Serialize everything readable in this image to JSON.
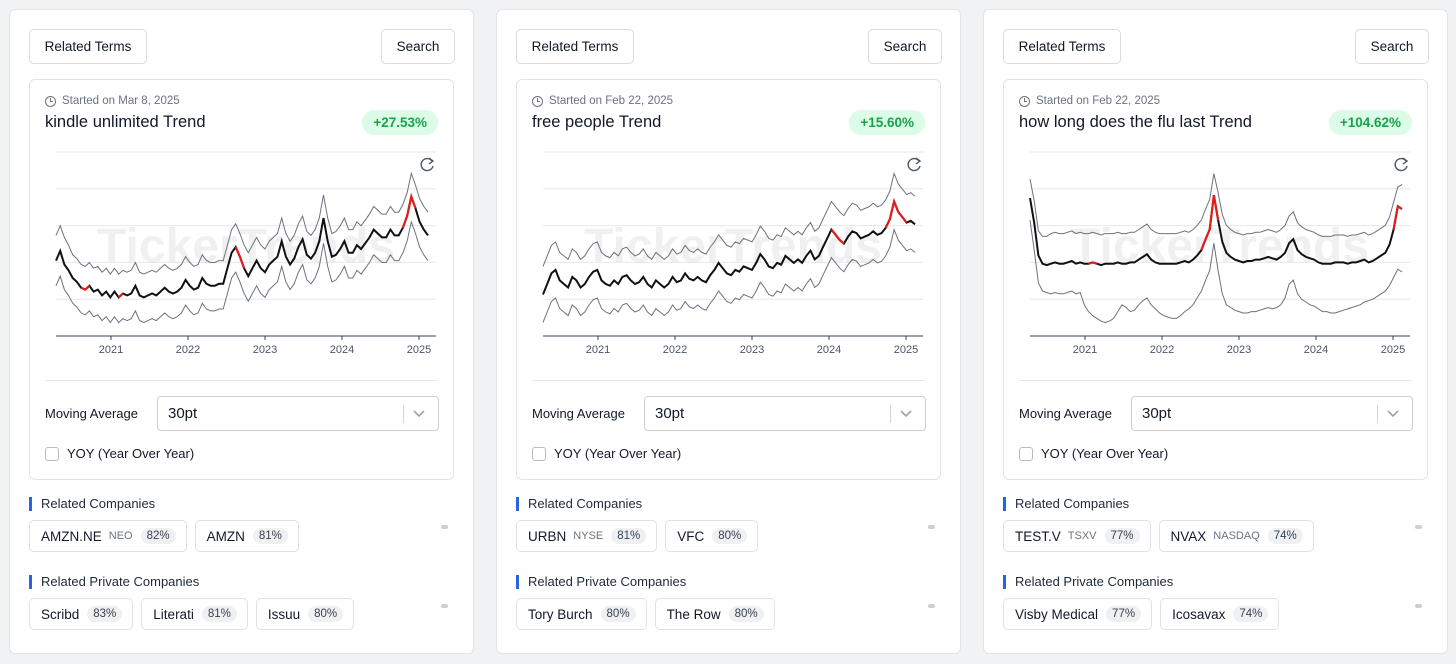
{
  "panels": [
    {
      "related_terms_label": "Related Terms",
      "search_label": "Search",
      "started": "Started on Mar 8, 2025",
      "title": "kindle unlimited Trend",
      "change": "+27.53%",
      "moving_average_label": "Moving Average",
      "moving_average_value": "30pt",
      "yoy_label": "YOY (Year Over Year)",
      "related_companies_label": "Related Companies",
      "related_companies": [
        {
          "name": "AMZN.NE",
          "exchange": "NEO",
          "pct": "82%"
        },
        {
          "name": "AMZN",
          "exchange": "",
          "pct": "81%"
        }
      ],
      "related_private_label": "Related Private Companies",
      "related_private": [
        {
          "name": "Scribd",
          "pct": "83%"
        },
        {
          "name": "Literati",
          "pct": "81%"
        },
        {
          "name": "Issuu",
          "pct": "80%"
        }
      ],
      "chart_data": {
        "type": "line",
        "x_ticks": [
          "2021",
          "2022",
          "2023",
          "2024",
          "2025"
        ],
        "watermark": "TickerTrends",
        "series": [
          {
            "values": [
              62,
              67,
              60,
              57,
              53,
              51,
              48,
              47,
              49,
              46,
              47,
              44,
              46,
              43,
              46,
              43,
              45,
              44,
              45,
              49,
              44,
              43,
              44,
              45,
              44,
              46,
              48,
              46,
              45,
              46,
              48,
              52,
              49,
              47,
              48,
              53,
              50,
              49,
              49,
              50,
              50,
              58,
              66,
              69,
              64,
              58,
              54,
              58,
              62,
              58,
              56,
              60,
              62,
              64,
              72,
              64,
              60,
              63,
              69,
              73,
              65,
              63,
              66,
              72,
              84,
              72,
              64,
              65,
              68,
              72,
              66,
              66,
              70,
              68,
              71,
              74,
              78,
              76,
              74,
              74,
              78,
              75,
              75,
              79,
              85,
              95,
              89,
              82,
              78,
              75
            ]
          },
          {
            "values": [
              75,
              80,
              74,
              70,
              65,
              63,
              60,
              59,
              61,
              58,
              59,
              56,
              58,
              55,
              58,
              55,
              57,
              56,
              57,
              61,
              56,
              55,
              56,
              57,
              56,
              58,
              60,
              58,
              57,
              58,
              60,
              64,
              61,
              59,
              60,
              65,
              62,
              61,
              61,
              62,
              62,
              70,
              78,
              81,
              76,
              70,
              66,
              70,
              74,
              70,
              68,
              72,
              74,
              76,
              84,
              76,
              72,
              75,
              81,
              85,
              77,
              75,
              78,
              84,
              96,
              84,
              76,
              77,
              80,
              84,
              78,
              78,
              82,
              80,
              83,
              86,
              90,
              88,
              86,
              86,
              90,
              87,
              87,
              91,
              97,
              107,
              101,
              94,
              90,
              87
            ]
          },
          {
            "values": [
              49,
              54,
              47,
              44,
              40,
              38,
              35,
              34,
              36,
              33,
              34,
              31,
              33,
              30,
              33,
              30,
              32,
              31,
              32,
              36,
              31,
              30,
              31,
              32,
              31,
              33,
              35,
              33,
              32,
              33,
              35,
              39,
              36,
              34,
              35,
              40,
              37,
              36,
              36,
              37,
              37,
              45,
              53,
              56,
              51,
              45,
              41,
              45,
              49,
              45,
              43,
              47,
              49,
              51,
              59,
              51,
              47,
              50,
              56,
              60,
              52,
              50,
              53,
              59,
              71,
              59,
              51,
              52,
              55,
              59,
              53,
              53,
              57,
              55,
              58,
              61,
              65,
              63,
              61,
              61,
              65,
              62,
              62,
              66,
              72,
              82,
              76,
              69,
              65,
              62
            ]
          }
        ],
        "highlights": [
          [
            6,
            8
          ],
          [
            15,
            16
          ],
          [
            43,
            45
          ],
          [
            83,
            86
          ]
        ]
      }
    },
    {
      "related_terms_label": "Related Terms",
      "search_label": "Search",
      "started": "Started on Feb 22, 2025",
      "title": "free people Trend",
      "change": "+15.60%",
      "moving_average_label": "Moving Average",
      "moving_average_value": "30pt",
      "yoy_label": "YOY (Year Over Year)",
      "related_companies_label": "Related Companies",
      "related_companies": [
        {
          "name": "URBN",
          "exchange": "NYSE",
          "pct": "81%"
        },
        {
          "name": "VFC",
          "exchange": "",
          "pct": "80%"
        }
      ],
      "related_private_label": "Related Private Companies",
      "related_private": [
        {
          "name": "Tory Burch",
          "pct": "80%"
        },
        {
          "name": "The Row",
          "pct": "80%"
        }
      ],
      "chart_data": {
        "type": "line",
        "x_ticks": [
          "2021",
          "2022",
          "2023",
          "2024",
          "2025"
        ],
        "watermark": "TickerTrends",
        "series": [
          {
            "values": [
              42,
              48,
              54,
              56,
              50,
              48,
              46,
              52,
              50,
              46,
              48,
              52,
              55,
              56,
              50,
              48,
              47,
              50,
              48,
              52,
              53,
              50,
              48,
              49,
              52,
              48,
              46,
              50,
              48,
              46,
              48,
              52,
              49,
              50,
              54,
              51,
              50,
              52,
              50,
              49,
              53,
              56,
              60,
              57,
              54,
              53,
              56,
              55,
              58,
              57,
              56,
              60,
              65,
              62,
              58,
              57,
              60,
              59,
              64,
              62,
              60,
              62,
              60,
              64,
              67,
              62,
              64,
              69,
              74,
              79,
              76,
              73,
              71,
              75,
              78,
              77,
              74,
              75,
              76,
              78,
              76,
              77,
              80,
              85,
              95,
              89,
              86,
              83,
              84,
              82
            ]
          },
          {
            "values": [
              58,
              64,
              70,
              72,
              66,
              64,
              62,
              68,
              66,
              62,
              64,
              68,
              71,
              72,
              66,
              64,
              63,
              66,
              64,
              68,
              69,
              66,
              64,
              65,
              68,
              64,
              62,
              66,
              64,
              62,
              64,
              68,
              65,
              66,
              70,
              67,
              66,
              68,
              66,
              65,
              69,
              72,
              76,
              73,
              70,
              69,
              72,
              71,
              74,
              73,
              72,
              76,
              81,
              78,
              74,
              73,
              76,
              75,
              80,
              78,
              76,
              78,
              76,
              80,
              83,
              78,
              80,
              85,
              90,
              95,
              92,
              89,
              87,
              91,
              94,
              93,
              90,
              91,
              92,
              94,
              92,
              93,
              96,
              101,
              111,
              105,
              102,
              99,
              100,
              98
            ]
          },
          {
            "values": [
              26,
              32,
              38,
              40,
              34,
              32,
              30,
              36,
              34,
              30,
              32,
              36,
              39,
              40,
              34,
              32,
              31,
              34,
              32,
              36,
              37,
              34,
              32,
              33,
              36,
              32,
              30,
              34,
              32,
              30,
              32,
              36,
              33,
              34,
              38,
              35,
              34,
              36,
              34,
              33,
              37,
              40,
              44,
              41,
              38,
              37,
              40,
              39,
              42,
              41,
              40,
              44,
              49,
              46,
              42,
              41,
              44,
              43,
              48,
              46,
              44,
              46,
              44,
              48,
              51,
              46,
              48,
              53,
              58,
              63,
              60,
              57,
              55,
              59,
              62,
              61,
              58,
              59,
              60,
              62,
              60,
              61,
              64,
              69,
              79,
              73,
              70,
              67,
              68,
              66
            ]
          }
        ],
        "highlights": [
          [
            69,
            72
          ],
          [
            82,
            87
          ]
        ]
      }
    },
    {
      "related_terms_label": "Related Terms",
      "search_label": "Search",
      "started": "Started on Feb 22, 2025",
      "title": "how long does the flu last Trend",
      "change": "+104.62%",
      "moving_average_label": "Moving Average",
      "moving_average_value": "30pt",
      "yoy_label": "YOY (Year Over Year)",
      "related_companies_label": "Related Companies",
      "related_companies": [
        {
          "name": "TEST.V",
          "exchange": "TSXV",
          "pct": "77%"
        },
        {
          "name": "NVAX",
          "exchange": "NASDAQ",
          "pct": "74%"
        }
      ],
      "related_private_label": "Related Private Companies",
      "related_private": [
        {
          "name": "Visby Medical",
          "pct": "77%"
        },
        {
          "name": "Icosavax",
          "pct": "74%"
        }
      ],
      "chart_data": {
        "type": "line",
        "x_ticks": [
          "2021",
          "2022",
          "2023",
          "2024",
          "2025"
        ],
        "watermark": "TickerTrends",
        "series": [
          {
            "values": [
              78,
              60,
              36,
              30,
              29,
              30,
              31,
              30,
              30,
              31,
              32,
              30,
              31,
              30,
              30,
              31,
              30,
              29,
              30,
              30,
              30,
              31,
              30,
              30,
              31,
              31,
              33,
              35,
              37,
              33,
              31,
              30,
              30,
              30,
              30,
              30,
              31,
              32,
              31,
              33,
              36,
              40,
              48,
              55,
              80,
              62,
              46,
              38,
              35,
              33,
              32,
              31,
              32,
              32,
              33,
              33,
              34,
              35,
              34,
              33,
              35,
              38,
              45,
              48,
              40,
              37,
              35,
              34,
              33,
              31,
              30,
              30,
              30,
              31,
              31,
              31,
              30,
              31,
              31,
              32,
              33,
              31,
              32,
              34,
              36,
              38,
              44,
              55,
              72,
              70
            ]
          },
          {
            "values": [
              92,
              76,
              54,
              50,
              50,
              52,
              53,
              52,
              52,
              53,
              54,
              52,
              53,
              52,
              52,
              53,
              52,
              51,
              52,
              52,
              52,
              53,
              52,
              52,
              53,
              53,
              55,
              57,
              59,
              55,
              53,
              52,
              52,
              52,
              52,
              52,
              53,
              54,
              53,
              55,
              58,
              62,
              70,
              77,
              96,
              82,
              66,
              58,
              55,
              53,
              52,
              51,
              52,
              52,
              53,
              53,
              54,
              55,
              54,
              53,
              55,
              58,
              65,
              68,
              60,
              57,
              55,
              54,
              53,
              51,
              50,
              50,
              50,
              51,
              51,
              51,
              50,
              51,
              51,
              52,
              53,
              51,
              52,
              54,
              56,
              58,
              64,
              75,
              86,
              88
            ]
          },
          {
            "values": [
              62,
              40,
              16,
              10,
              9,
              8,
              9,
              8,
              8,
              9,
              10,
              8,
              9,
              0,
              -5,
              -8,
              -10,
              -12,
              -13,
              -12,
              -10,
              -5,
              0,
              -2,
              -5,
              -4,
              0,
              3,
              5,
              0,
              -3,
              -6,
              -8,
              -9,
              -10,
              -10,
              -8,
              -5,
              -3,
              0,
              5,
              10,
              18,
              25,
              45,
              25,
              8,
              0,
              -2,
              -4,
              -5,
              -6,
              -6,
              -5,
              -5,
              -4,
              -3,
              -2,
              -3,
              -2,
              0,
              5,
              15,
              18,
              8,
              4,
              2,
              0,
              -1,
              -3,
              -5,
              -5,
              -6,
              -6,
              -5,
              -4,
              -3,
              -2,
              -1,
              0,
              2,
              3,
              4,
              6,
              8,
              10,
              14,
              20,
              26,
              24
            ]
          }
        ],
        "highlights": [
          [
            14,
            16
          ],
          [
            41,
            45
          ],
          [
            87,
            89
          ]
        ]
      }
    }
  ]
}
